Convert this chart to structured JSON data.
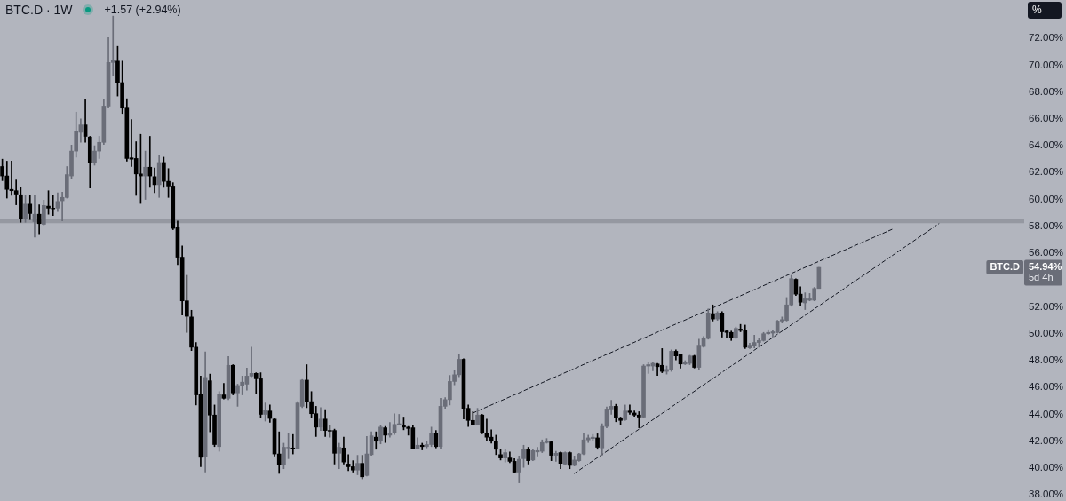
{
  "chart_data": {
    "type": "candlestick",
    "title": "BTC.D · 1W",
    "subtitle": "+1.57 (+2.94%)",
    "ylabel": "%",
    "categories": [
      null,
      null,
      null,
      null,
      null,
      null,
      null,
      null,
      null,
      null,
      null,
      null,
      null,
      null,
      null,
      null,
      null,
      null,
      null,
      null,
      null,
      null,
      null,
      null,
      null,
      null,
      null,
      null,
      null,
      null,
      null,
      null,
      null,
      null,
      null,
      null,
      null,
      null,
      null,
      null,
      null,
      null,
      null,
      null,
      null,
      null,
      null,
      null,
      null,
      null,
      null,
      null,
      null,
      null,
      null,
      null,
      null,
      null,
      null,
      null,
      null,
      null,
      null,
      null,
      null,
      null,
      null,
      null,
      null,
      null,
      null,
      null,
      null,
      null,
      null,
      null,
      null,
      null,
      null,
      null,
      null,
      null,
      null,
      null,
      null,
      null,
      null,
      null,
      null,
      null,
      null,
      null,
      null,
      null,
      null,
      null,
      null,
      null,
      null,
      null,
      null,
      null,
      null,
      null,
      null,
      null,
      null,
      null,
      null,
      null,
      null,
      null,
      null,
      null,
      null,
      null,
      null,
      null,
      null,
      null,
      null,
      null,
      null,
      null,
      null,
      null,
      null,
      null,
      null,
      null,
      null,
      null,
      null,
      null,
      null,
      null,
      null,
      null,
      null,
      null,
      null,
      null,
      null,
      null,
      null,
      null,
      null,
      null,
      null,
      null,
      null,
      null,
      null,
      null,
      null,
      null,
      null,
      null,
      null,
      null,
      null,
      null,
      null,
      null,
      null,
      null,
      null,
      null,
      null,
      null,
      null,
      null,
      null,
      null,
      null,
      null,
      null,
      null,
      null,
      null,
      null,
      null,
      null,
      null,
      null,
      null,
      null,
      null,
      null,
      null,
      null,
      null,
      null,
      null,
      null,
      null,
      null,
      null,
      null,
      null,
      null,
      null,
      null,
      null,
      null,
      null,
      null,
      null,
      null,
      null,
      null,
      null,
      null,
      null,
      null,
      null,
      null,
      null,
      null,
      null,
      null,
      null
    ],
    "series": [
      {
        "ohlc": [
          [
            62.45,
            63.0,
            61.4,
            61.75
          ],
          [
            61.75,
            62.85,
            60.1,
            60.75
          ],
          [
            60.75,
            62.85,
            60.3,
            60.65
          ],
          [
            60.65,
            61.45,
            59.6,
            60.4
          ],
          [
            60.35,
            60.9,
            58.3,
            58.6
          ],
          [
            58.6,
            60.3,
            58.3,
            59.65
          ],
          [
            59.65,
            60.3,
            58.5,
            58.95
          ],
          [
            58.35,
            60.3,
            57.2,
            58.9
          ],
          [
            58.9,
            59.6,
            57.45,
            58.2
          ],
          [
            58.15,
            59.95,
            58.1,
            59.55
          ],
          [
            59.5,
            60.65,
            58.9,
            59.35
          ],
          [
            59.35,
            60.3,
            58.8,
            59.3
          ],
          [
            59.35,
            60.5,
            59.1,
            59.85
          ],
          [
            59.9,
            60.55,
            58.4,
            60.15
          ],
          [
            60.15,
            62.45,
            60.1,
            61.85
          ],
          [
            61.75,
            64.05,
            61.55,
            63.6
          ],
          [
            63.6,
            66.5,
            63.15,
            65.05
          ],
          [
            65.0,
            66.0,
            64.25,
            65.55
          ],
          [
            65.55,
            67.45,
            64.25,
            64.7
          ],
          [
            64.65,
            64.7,
            60.85,
            62.75
          ],
          [
            62.75,
            64.0,
            62.55,
            63.6
          ],
          [
            63.6,
            64.7,
            63.05,
            64.25
          ],
          [
            64.25,
            67.45,
            64.1,
            66.95
          ],
          [
            66.95,
            72.05,
            66.8,
            70.2
          ],
          [
            70.2,
            73.65,
            69.2,
            70.35
          ],
          [
            70.3,
            71.4,
            67.7,
            68.7
          ],
          [
            68.7,
            70.3,
            66.4,
            66.8
          ],
          [
            66.8,
            67.5,
            62.85,
            63.05
          ],
          [
            63.1,
            65.95,
            62.45,
            63.0
          ],
          [
            63.05,
            64.3,
            60.3,
            61.9
          ],
          [
            61.9,
            64.85,
            59.7,
            61.75
          ],
          [
            61.75,
            63.6,
            60.0,
            62.4
          ],
          [
            62.4,
            64.7,
            60.9,
            61.75
          ],
          [
            61.7,
            62.35,
            60.5,
            61.1
          ],
          [
            61.1,
            63.3,
            60.15,
            62.75
          ],
          [
            62.75,
            63.15,
            60.9,
            61.35
          ],
          [
            61.35,
            62.3,
            60.15,
            61.0
          ],
          [
            61.0,
            61.25,
            57.75,
            57.85
          ],
          [
            57.9,
            58.4,
            55.15,
            55.7
          ],
          [
            55.7,
            56.55,
            51.4,
            52.45
          ],
          [
            52.45,
            54.35,
            50.1,
            51.3
          ],
          [
            51.25,
            51.75,
            48.75,
            49.0
          ],
          [
            49.0,
            49.35,
            44.7,
            45.45
          ],
          [
            45.5,
            46.85,
            40.1,
            40.8
          ],
          [
            40.85,
            48.65,
            39.7,
            46.75
          ],
          [
            46.5,
            47.0,
            42.7,
            43.95
          ],
          [
            43.95,
            44.7,
            41.6,
            41.75
          ],
          [
            41.6,
            45.7,
            41.25,
            45.5
          ],
          [
            45.45,
            46.3,
            45.15,
            45.2
          ],
          [
            45.2,
            48.3,
            45.1,
            47.65
          ],
          [
            47.65,
            47.7,
            45.45,
            45.6
          ],
          [
            45.6,
            46.25,
            44.6,
            46.15
          ],
          [
            46.15,
            46.85,
            45.45,
            46.4
          ],
          [
            46.25,
            47.45,
            45.8,
            46.85
          ],
          [
            46.85,
            49.0,
            46.8,
            47.05
          ],
          [
            47.05,
            47.1,
            45.55,
            46.65
          ],
          [
            46.65,
            47.1,
            43.75,
            44.0
          ],
          [
            44.0,
            44.85,
            43.5,
            44.3
          ],
          [
            44.25,
            44.7,
            43.4,
            43.7
          ],
          [
            43.65,
            43.75,
            40.9,
            41.05
          ],
          [
            41.05,
            42.7,
            39.6,
            40.25
          ],
          [
            40.25,
            41.85,
            39.95,
            41.55
          ],
          [
            41.5,
            42.6,
            40.7,
            41.55
          ],
          [
            41.5,
            42.5,
            41.05,
            41.45
          ],
          [
            41.45,
            44.95,
            41.4,
            44.85
          ],
          [
            44.6,
            46.6,
            44.5,
            46.55
          ],
          [
            46.55,
            47.7,
            44.5,
            44.95
          ],
          [
            44.95,
            45.7,
            43.75,
            44.05
          ],
          [
            44.05,
            44.6,
            42.35,
            43.05
          ],
          [
            43.05,
            44.5,
            42.8,
            43.65
          ],
          [
            43.65,
            44.35,
            42.35,
            42.8
          ],
          [
            42.8,
            43.15,
            42.3,
            42.75
          ],
          [
            42.8,
            42.9,
            40.3,
            41.1
          ],
          [
            41.1,
            41.85,
            39.95,
            41.55
          ],
          [
            41.5,
            42.3,
            40.3,
            40.45
          ],
          [
            40.3,
            41.0,
            39.8,
            40.1
          ],
          [
            40.1,
            40.55,
            39.7,
            39.85
          ],
          [
            39.85,
            40.95,
            39.5,
            40.35
          ],
          [
            40.35,
            40.95,
            39.2,
            39.35
          ],
          [
            39.45,
            42.35,
            39.4,
            41.05
          ],
          [
            41.0,
            42.7,
            40.95,
            42.4
          ],
          [
            42.3,
            42.7,
            41.4,
            42.0
          ],
          [
            42.0,
            43.2,
            41.8,
            43.05
          ],
          [
            43.0,
            43.1,
            41.9,
            42.45
          ],
          [
            42.45,
            43.4,
            42.3,
            42.6
          ],
          [
            42.6,
            44.05,
            42.5,
            43.25
          ],
          [
            43.25,
            44.0,
            43.2,
            43.3
          ],
          [
            43.2,
            43.8,
            42.85,
            43.05
          ],
          [
            43.05,
            43.1,
            42.45,
            42.95
          ],
          [
            43.0,
            43.15,
            41.4,
            41.45
          ],
          [
            41.45,
            42.25,
            41.4,
            41.7
          ],
          [
            41.7,
            41.85,
            41.35,
            41.6
          ],
          [
            41.6,
            42.0,
            41.5,
            41.75
          ],
          [
            41.75,
            43.05,
            41.6,
            42.6
          ],
          [
            42.6,
            42.8,
            41.5,
            41.6
          ],
          [
            41.6,
            45.2,
            41.45,
            44.6
          ],
          [
            44.6,
            45.25,
            44.45,
            45.1
          ],
          [
            45.1,
            46.9,
            44.7,
            46.45
          ],
          [
            46.45,
            47.25,
            46.2,
            46.95
          ],
          [
            46.95,
            48.5,
            46.8,
            48.1
          ],
          [
            48.1,
            48.15,
            43.65,
            44.45
          ],
          [
            44.45,
            44.7,
            43.1,
            43.55
          ],
          [
            43.55,
            44.2,
            43.2,
            43.25
          ],
          [
            43.25,
            44.45,
            43.2,
            43.95
          ],
          [
            43.95,
            44.0,
            42.55,
            42.6
          ],
          [
            42.6,
            43.65,
            42.05,
            42.3
          ],
          [
            42.3,
            42.85,
            41.85,
            42.0
          ],
          [
            42.0,
            42.45,
            41.0,
            41.4
          ],
          [
            41.0,
            41.4,
            40.6,
            40.75
          ],
          [
            40.75,
            41.4,
            40.45,
            41.15
          ],
          [
            40.75,
            41.2,
            40.4,
            40.5
          ],
          [
            40.5,
            40.7,
            39.65,
            39.7
          ],
          [
            39.7,
            40.9,
            38.9,
            40.65
          ],
          [
            40.7,
            41.7,
            40.05,
            41.4
          ],
          [
            41.4,
            41.55,
            40.3,
            40.55
          ],
          [
            40.6,
            41.4,
            40.55,
            41.3
          ],
          [
            41.2,
            41.55,
            40.9,
            41.3
          ],
          [
            41.25,
            42.1,
            41.15,
            41.9
          ],
          [
            41.9,
            42.2,
            41.85,
            42.0
          ],
          [
            41.95,
            42.0,
            40.55,
            40.95
          ],
          [
            40.95,
            41.25,
            40.5,
            41.1
          ],
          [
            41.15,
            41.2,
            39.95,
            40.35
          ],
          [
            40.3,
            41.2,
            40.25,
            41.15
          ],
          [
            41.15,
            41.2,
            39.95,
            40.2
          ],
          [
            40.2,
            40.9,
            40.15,
            40.6
          ],
          [
            40.55,
            41.1,
            40.5,
            41.05
          ],
          [
            41.05,
            42.55,
            41.0,
            42.1
          ],
          [
            42.1,
            42.45,
            41.9,
            42.25
          ],
          [
            42.2,
            42.5,
            42.05,
            42.3
          ],
          [
            42.25,
            42.55,
            41.4,
            41.55
          ],
          [
            41.5,
            43.3,
            40.95,
            43.1
          ],
          [
            43.1,
            44.55,
            43.0,
            44.4
          ],
          [
            44.4,
            45.05,
            44.0,
            44.6
          ],
          [
            44.6,
            44.75,
            43.45,
            43.75
          ],
          [
            43.75,
            43.8,
            43.2,
            43.55
          ],
          [
            43.6,
            44.7,
            43.55,
            44.25
          ],
          [
            44.25,
            44.7,
            44.0,
            44.15
          ],
          [
            44.1,
            44.25,
            43.85,
            43.95
          ],
          [
            43.95,
            44.2,
            43.0,
            43.8
          ],
          [
            43.8,
            47.7,
            43.75,
            47.6
          ],
          [
            47.6,
            47.85,
            47.05,
            47.7
          ],
          [
            47.6,
            47.9,
            47.25,
            47.8
          ],
          [
            47.75,
            47.8,
            46.9,
            47.55
          ],
          [
            47.65,
            48.9,
            47.1,
            47.2
          ],
          [
            47.2,
            47.6,
            47.0,
            47.35
          ],
          [
            47.3,
            48.8,
            47.2,
            48.7
          ],
          [
            48.7,
            48.8,
            48.05,
            48.35
          ],
          [
            48.45,
            48.5,
            47.45,
            47.75
          ],
          [
            47.75,
            48.0,
            47.7,
            47.85
          ],
          [
            47.8,
            48.4,
            47.7,
            48.35
          ],
          [
            48.35,
            48.4,
            47.45,
            47.5
          ],
          [
            47.5,
            49.6,
            47.35,
            49.15
          ],
          [
            49.05,
            49.8,
            49.0,
            49.7
          ],
          [
            49.65,
            51.85,
            49.6,
            51.55
          ],
          [
            51.5,
            52.15,
            50.95,
            51.1
          ],
          [
            51.1,
            51.65,
            51.0,
            51.55
          ],
          [
            51.55,
            51.65,
            49.75,
            50.15
          ],
          [
            50.2,
            50.25,
            49.7,
            50.1
          ],
          [
            50.1,
            50.2,
            49.5,
            49.7
          ],
          [
            49.7,
            50.5,
            49.65,
            50.4
          ],
          [
            50.35,
            50.7,
            50.15,
            50.25
          ],
          [
            50.25,
            50.65,
            48.9,
            49.0
          ],
          [
            48.95,
            49.3,
            48.9,
            49.15
          ],
          [
            49.1,
            49.9,
            48.95,
            49.35
          ],
          [
            49.35,
            49.65,
            49.0,
            49.5
          ],
          [
            49.5,
            50.1,
            49.45,
            50.0
          ],
          [
            50.0,
            50.3,
            49.95,
            50.1
          ],
          [
            50.05,
            50.25,
            49.75,
            50.15
          ],
          [
            50.1,
            51.0,
            50.05,
            50.95
          ],
          [
            50.95,
            51.25,
            50.8,
            51.05
          ],
          [
            51.0,
            52.7,
            50.95,
            52.15
          ],
          [
            52.15,
            54.35,
            52.05,
            54.1
          ],
          [
            54.05,
            54.1,
            52.85,
            52.95
          ],
          [
            52.95,
            53.5,
            52.05,
            52.35
          ],
          [
            52.3,
            53.05,
            51.8,
            52.6
          ],
          [
            52.5,
            53.0,
            52.45,
            52.6
          ],
          [
            52.5,
            53.45,
            52.45,
            53.37
          ],
          [
            53.37,
            54.94,
            53.37,
            54.94
          ],
          null,
          null,
          null,
          null,
          null,
          null,
          null,
          null,
          null,
          null,
          null,
          null,
          null,
          null,
          null,
          null,
          null,
          null,
          null,
          null,
          null,
          null,
          null,
          null,
          null,
          null,
          null,
          null,
          null,
          null,
          null,
          null,
          null,
          null,
          null,
          null,
          null,
          null,
          null,
          null,
          null,
          null,
          null,
          null
        ],
        "colors": [
          "#000000",
          "#000000",
          "#000000",
          "#000000",
          "#000000",
          "#6a6d78",
          "#000000",
          "#6a6d78",
          "#000000",
          "#6a6d78",
          "#000000",
          "#000000",
          "#6a6d78",
          "#6a6d78",
          "#6a6d78",
          "#6a6d78",
          "#6a6d78",
          "#6a6d78",
          "#000000",
          "#000000",
          "#6a6d78",
          "#6a6d78",
          "#6a6d78",
          "#6a6d78",
          "#6a6d78",
          "#000000",
          "#000000",
          "#000000",
          "#000000",
          "#000000",
          "#000000",
          "#6a6d78",
          "#000000",
          "#000000",
          "#6a6d78",
          "#000000",
          "#000000",
          "#000000",
          "#000000",
          "#000000",
          "#000000",
          "#000000",
          "#000000",
          "#000000",
          "#6a6d78",
          "#000000",
          "#000000",
          "#6a6d78",
          "#000000",
          "#6a6d78",
          "#000000",
          "#6a6d78",
          "#6a6d78",
          "#6a6d78",
          "#6a6d78",
          "#000000",
          "#000000",
          "#6a6d78",
          "#000000",
          "#000000",
          "#000000",
          "#6a6d78",
          "#6a6d78",
          "#000000",
          "#6a6d78",
          "#6a6d78",
          "#000000",
          "#000000",
          "#000000",
          "#6a6d78",
          "#000000",
          "#000000",
          "#000000",
          "#6a6d78",
          "#000000",
          "#000000",
          "#000000",
          "#6a6d78",
          "#000000",
          "#6a6d78",
          "#6a6d78",
          "#000000",
          "#6a6d78",
          "#000000",
          "#6a6d78",
          "#6a6d78",
          "#6a6d78",
          "#000000",
          "#000000",
          "#000000",
          "#6a6d78",
          "#000000",
          "#6a6d78",
          "#6a6d78",
          "#000000",
          "#6a6d78",
          "#6a6d78",
          "#6a6d78",
          "#6a6d78",
          "#6a6d78",
          "#000000",
          "#000000",
          "#000000",
          "#6a6d78",
          "#000000",
          "#000000",
          "#000000",
          "#000000",
          "#000000",
          "#6a6d78",
          "#000000",
          "#000000",
          "#6a6d78",
          "#6a6d78",
          "#000000",
          "#6a6d78",
          "#6a6d78",
          "#6a6d78",
          "#6a6d78",
          "#000000",
          "#6a6d78",
          "#000000",
          "#6a6d78",
          "#000000",
          "#6a6d78",
          "#6a6d78",
          "#6a6d78",
          "#6a6d78",
          "#6a6d78",
          "#000000",
          "#6a6d78",
          "#6a6d78",
          "#6a6d78",
          "#000000",
          "#000000",
          "#6a6d78",
          "#000000",
          "#000000",
          "#000000",
          "#6a6d78",
          "#6a6d78",
          "#6a6d78",
          "#000000",
          "#000000",
          "#6a6d78",
          "#6a6d78",
          "#000000",
          "#000000",
          "#6a6d78",
          "#6a6d78",
          "#000000",
          "#6a6d78",
          "#6a6d78",
          "#6a6d78",
          "#000000",
          "#6a6d78",
          "#000000",
          "#000000",
          "#000000",
          "#6a6d78",
          "#000000",
          "#000000",
          "#6a6d78",
          "#6a6d78",
          "#6a6d78",
          "#6a6d78",
          "#6a6d78",
          "#6a6d78",
          "#6a6d78",
          "#6a6d78",
          "#6a6d78",
          "#6a6d78",
          "#000000",
          "#000000",
          "#6a6d78",
          "#6a6d78",
          "#6a6d78",
          "#6a6d78",
          null,
          null,
          null,
          null,
          null,
          null,
          null,
          null,
          null,
          null,
          null,
          null,
          null,
          null,
          null,
          null,
          null,
          null,
          null,
          null,
          null,
          null,
          null,
          null,
          null,
          null,
          null,
          null,
          null,
          null,
          null,
          null,
          null,
          null,
          null,
          null,
          null,
          null,
          null,
          null,
          null,
          null,
          null,
          null
        ]
      },
      {
        "type": "line",
        "color": "#131722",
        "line_style": "dashed",
        "marker": "none",
        "values": [
          null,
          null,
          null,
          null,
          null,
          null,
          null,
          null,
          null,
          null,
          null,
          null,
          null,
          null,
          null,
          null,
          null,
          null,
          null,
          null,
          null,
          null,
          null,
          null,
          null,
          null,
          null,
          null,
          null,
          null,
          null,
          null,
          null,
          null,
          null,
          null,
          null,
          null,
          null,
          null,
          null,
          null,
          null,
          null,
          null,
          null,
          null,
          null,
          null,
          null,
          null,
          null,
          null,
          null,
          null,
          null,
          null,
          null,
          null,
          null,
          null,
          null,
          null,
          null,
          null,
          null,
          null,
          null,
          null,
          null,
          null,
          null,
          null,
          null,
          null,
          null,
          null,
          null,
          null,
          null,
          null,
          null,
          null,
          null,
          null,
          null,
          null,
          null,
          null,
          null,
          null,
          null,
          null,
          null,
          null,
          null,
          null,
          null,
          null,
          null,
          null,
          null,
          44.1,
          null,
          null,
          null,
          null,
          null,
          null,
          null,
          null,
          null,
          null,
          null,
          null,
          null,
          null,
          null,
          null,
          null,
          null,
          null,
          null,
          null,
          null,
          null,
          null,
          null,
          null,
          null,
          null,
          null,
          null,
          null,
          null,
          null,
          null,
          null,
          null,
          null,
          null,
          null,
          null,
          null,
          null,
          null,
          null,
          null,
          null,
          null,
          null,
          null,
          null,
          null,
          null,
          null,
          null,
          null,
          null,
          null,
          null,
          null,
          null,
          null,
          null,
          null,
          null,
          null,
          null,
          null,
          null,
          null,
          null,
          null,
          null,
          null,
          null,
          null,
          null,
          null,
          null,
          null,
          null,
          null,
          null,
          null,
          null,
          null,
          null,
          null,
          null,
          null,
          null,
          57.8,
          null,
          null,
          null,
          null,
          null,
          null,
          null,
          null,
          null,
          null,
          null,
          null,
          null,
          null,
          null,
          null,
          null,
          null,
          null,
          null,
          null,
          null,
          null,
          null,
          null,
          null,
          null,
          null
        ]
      },
      {
        "type": "line",
        "color": "#131722",
        "line_style": "dashed",
        "marker": "none",
        "values": [
          null,
          null,
          null,
          null,
          null,
          null,
          null,
          null,
          null,
          null,
          null,
          null,
          null,
          null,
          null,
          null,
          null,
          null,
          null,
          null,
          null,
          null,
          null,
          null,
          null,
          null,
          null,
          null,
          null,
          null,
          null,
          null,
          null,
          null,
          null,
          null,
          null,
          null,
          null,
          null,
          null,
          null,
          null,
          null,
          null,
          null,
          null,
          null,
          null,
          null,
          null,
          null,
          null,
          null,
          null,
          null,
          null,
          null,
          null,
          null,
          null,
          null,
          null,
          null,
          null,
          null,
          null,
          null,
          null,
          null,
          null,
          null,
          null,
          null,
          null,
          null,
          null,
          null,
          null,
          null,
          null,
          null,
          null,
          null,
          null,
          null,
          null,
          null,
          null,
          null,
          null,
          null,
          null,
          null,
          null,
          null,
          null,
          null,
          null,
          null,
          null,
          null,
          null,
          null,
          null,
          null,
          null,
          null,
          null,
          null,
          null,
          null,
          null,
          null,
          null,
          null,
          null,
          null,
          null,
          null,
          null,
          null,
          null,
          null,
          39.6,
          null,
          null,
          null,
          null,
          null,
          null,
          null,
          null,
          null,
          null,
          null,
          null,
          null,
          null,
          null,
          null,
          null,
          null,
          null,
          null,
          null,
          null,
          null,
          null,
          null,
          null,
          null,
          null,
          null,
          null,
          null,
          null,
          null,
          null,
          null,
          null,
          null,
          null,
          null,
          null,
          null,
          null,
          null,
          null,
          null,
          null,
          null,
          null,
          null,
          null,
          null,
          null,
          null,
          null,
          null,
          null,
          null,
          null,
          null,
          null,
          null,
          null,
          null,
          null,
          null,
          null,
          null,
          null,
          null,
          null,
          null,
          null,
          null,
          null,
          null,
          null,
          null,
          null,
          58.2,
          null,
          null,
          null,
          null,
          null,
          null,
          null,
          null,
          null,
          null,
          null,
          null,
          null,
          null,
          null,
          null,
          null,
          null
        ]
      }
    ],
    "ylim": [
      37.55,
      74.85
    ],
    "yticks": [
      {
        "value": 38,
        "label": "38.00%"
      },
      {
        "value": 40,
        "label": "40.00%"
      },
      {
        "value": 42,
        "label": "42.00%"
      },
      {
        "value": 44,
        "label": "44.00%"
      },
      {
        "value": 46,
        "label": "46.00%"
      },
      {
        "value": 48,
        "label": "48.00%"
      },
      {
        "value": 50,
        "label": "50.00%"
      },
      {
        "value": 52,
        "label": "52.00%"
      },
      {
        "value": 56,
        "label": "56.00%"
      },
      {
        "value": 58,
        "label": "58.00%"
      },
      {
        "value": 60,
        "label": "60.00%"
      },
      {
        "value": 62,
        "label": "62.00%"
      },
      {
        "value": 64,
        "label": "64.00%"
      },
      {
        "value": 66,
        "label": "66.00%"
      },
      {
        "value": 68,
        "label": "68.00%"
      },
      {
        "value": 70,
        "label": "70.00%"
      },
      {
        "value": 72,
        "label": "72.00%"
      }
    ],
    "ref_lines": [
      {
        "axis": "y",
        "value": 58.4,
        "color": "#9598a1"
      }
    ],
    "annotations": [
      "BTC.D",
      "54.94%",
      "5d 4h"
    ],
    "tick_labels": "y"
  }
}
